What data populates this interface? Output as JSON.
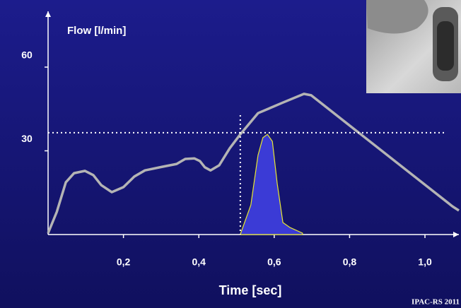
{
  "chart_data": {
    "type": "line",
    "y_label": "Flow [l/min]",
    "x_label": "Time  [sec]",
    "footer": "IPAC-RS 2011",
    "xlim": [
      0,
      1.09
    ],
    "ylim": [
      0,
      80
    ],
    "xticks": [
      {
        "value": 0.2,
        "label": "0,2"
      },
      {
        "value": 0.4,
        "label": "0,4"
      },
      {
        "value": 0.6,
        "label": "0,6"
      },
      {
        "value": 0.8,
        "label": "0,8"
      },
      {
        "value": 1.0,
        "label": "1,0"
      }
    ],
    "yticks": [
      30,
      60
    ],
    "hline": 36.5,
    "vline": 0.51,
    "series": [
      {
        "kind": "line",
        "color": "#b4b4b4",
        "x": [
          0,
          0.023,
          0.047,
          0.069,
          0.098,
          0.12,
          0.141,
          0.169,
          0.2,
          0.229,
          0.257,
          0.304,
          0.341,
          0.364,
          0.388,
          0.403,
          0.416,
          0.431,
          0.454,
          0.482,
          0.51,
          0.557,
          0.623,
          0.679,
          0.698,
          1.073,
          1.09
        ],
        "values": [
          0.5,
          8.1,
          18.7,
          22,
          22.8,
          21.3,
          17.7,
          15.2,
          17,
          20.8,
          23,
          24.3,
          25.3,
          27.1,
          27.3,
          26.3,
          24.1,
          23,
          24.8,
          30.9,
          35.9,
          43.5,
          47.3,
          50.4,
          49.9,
          10.1,
          8.6
        ]
      },
      {
        "kind": "area",
        "color": "#3b3bd6",
        "edge": "#e8e830",
        "x": [
          0.51,
          0.538,
          0.557,
          0.57,
          0.582,
          0.595,
          0.608,
          0.623,
          0.642,
          0.675
        ],
        "values": [
          0,
          10.6,
          28.4,
          34.7,
          35.9,
          33.4,
          18.2,
          4.3,
          2.5,
          0.5
        ]
      }
    ]
  }
}
